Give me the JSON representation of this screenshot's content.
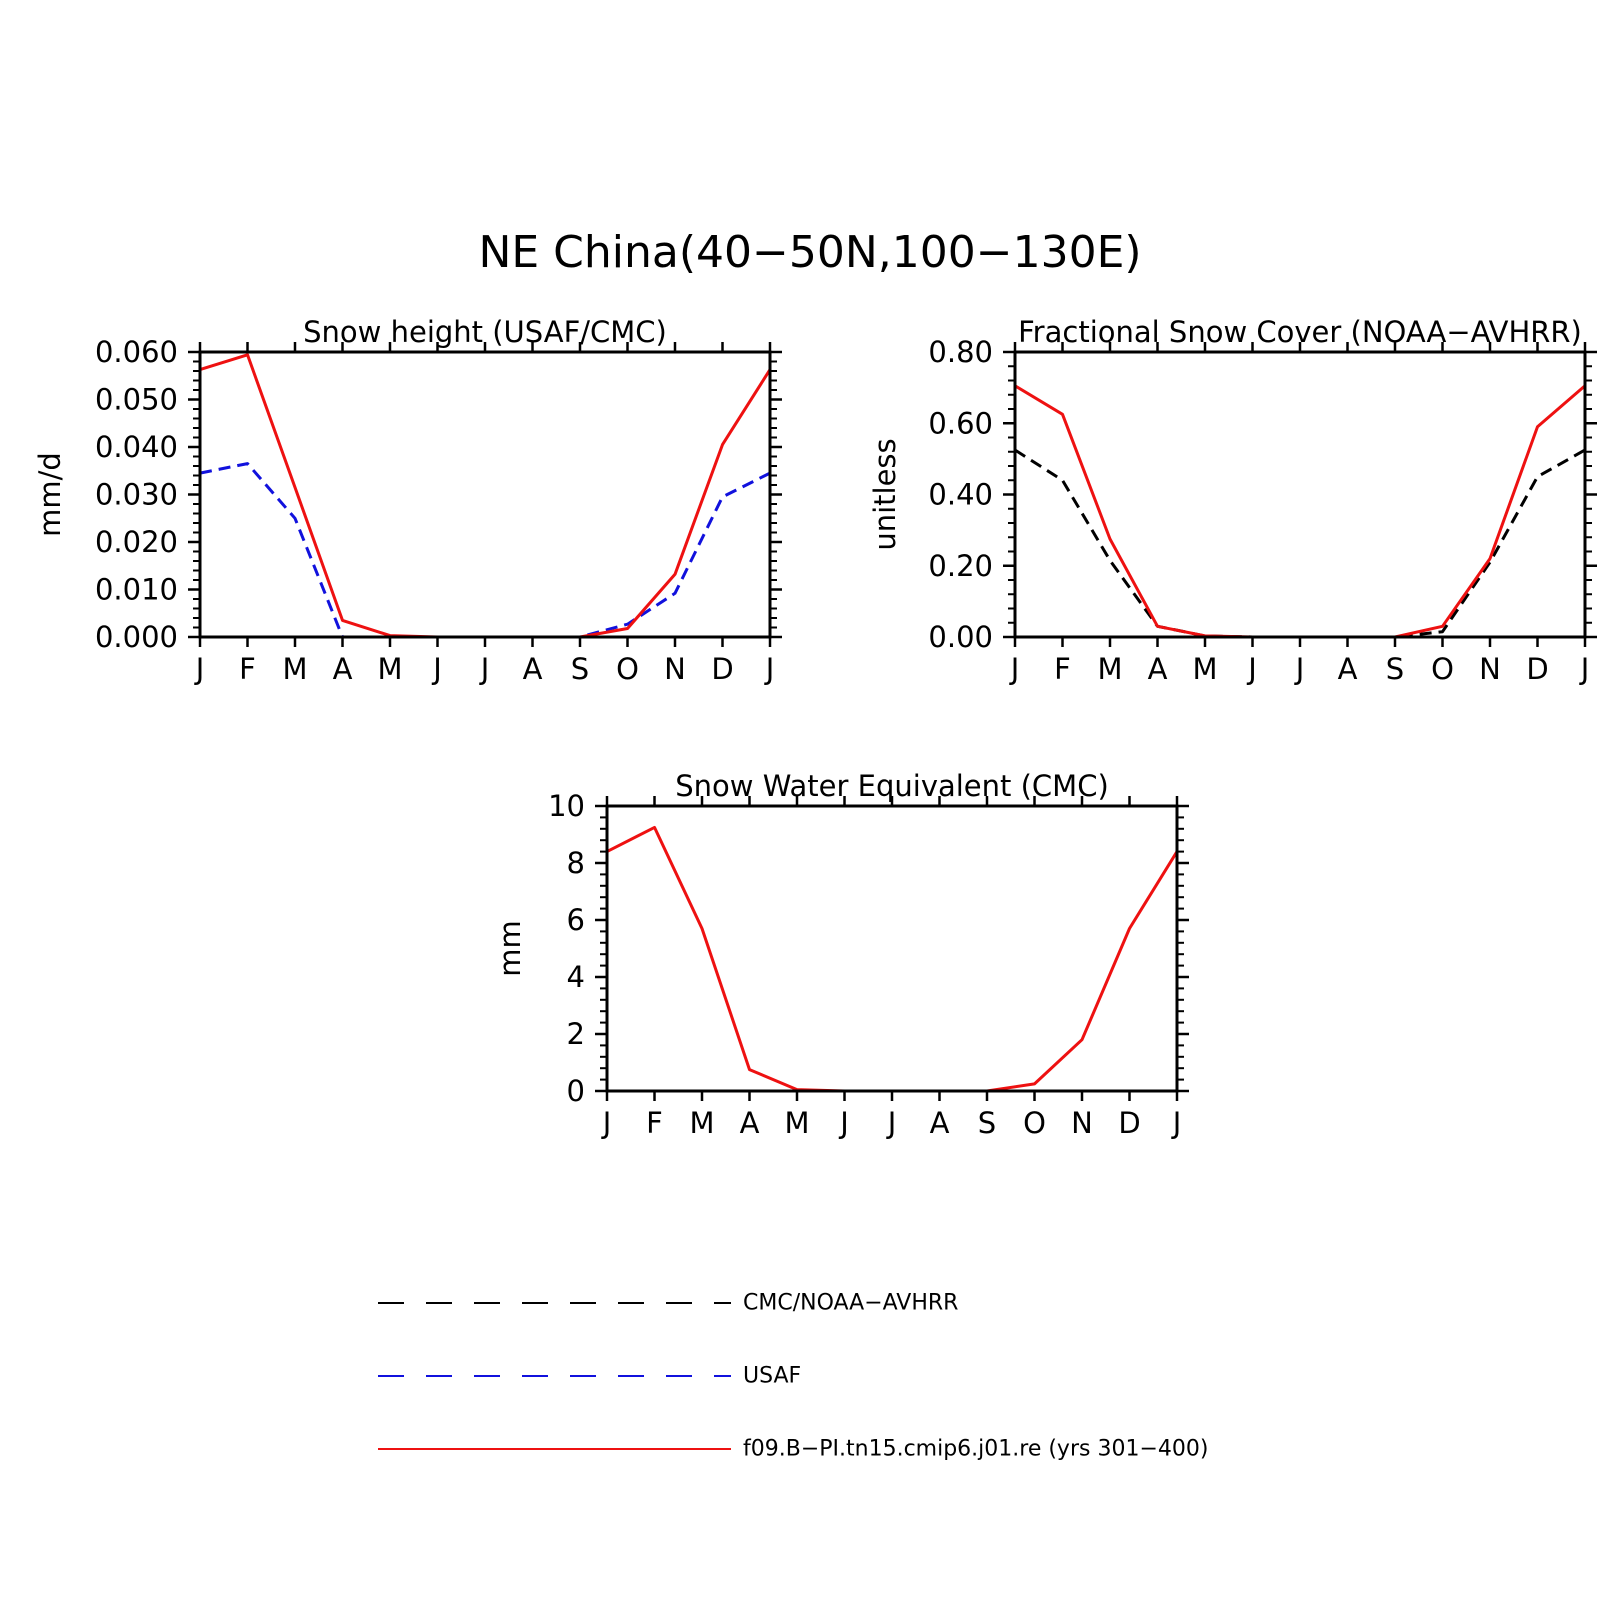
{
  "main_title": "NE China(40−50N,100−130E)",
  "colors": {
    "model": "#ee1111",
    "obs_black": "#000000",
    "obs_blue": "#1111dd"
  },
  "legend": [
    {
      "label": "CMC/NOAA−AVHRR",
      "color": "#000000",
      "dash": "26,22"
    },
    {
      "label": "USAF",
      "color": "#1111dd",
      "dash": "26,22"
    },
    {
      "label": "f09.B−PI.tn15.cmip6.j01.re (yrs 301−400)",
      "color": "#ee1111",
      "dash": ""
    }
  ],
  "chart_data": [
    {
      "type": "line",
      "title": "Snow height (USAF/CMC)",
      "ylabel": "mm/d",
      "xlabel": "",
      "categories": [
        "J",
        "F",
        "M",
        "A",
        "M",
        "J",
        "J",
        "A",
        "S",
        "O",
        "N",
        "D",
        "J"
      ],
      "ylim": [
        0,
        0.06
      ],
      "yticks": [
        "0.000",
        "0.010",
        "0.020",
        "0.030",
        "0.040",
        "0.050",
        "0.060"
      ],
      "series": [
        {
          "name": "CMC/NOAA−AVHRR",
          "color": "#000000",
          "dash": "12,7",
          "values": [
            0,
            0,
            0,
            0,
            0,
            0,
            0,
            0,
            0,
            0,
            0,
            0,
            0
          ]
        },
        {
          "name": "USAF",
          "color": "#1111dd",
          "dash": "12,7",
          "values": [
            0.0345,
            0.0365,
            0.025,
            0.0,
            0.0,
            0.0,
            0.0,
            0.0,
            0.0,
            0.0027,
            0.0092,
            0.0295,
            0.0345
          ]
        },
        {
          "name": "f09.B−PI.tn15.cmip6.j01.re (yrs 301−400)",
          "color": "#ee1111",
          "dash": "",
          "values": [
            0.0563,
            0.0594,
            0.0315,
            0.0035,
            0.0003,
            0.0,
            0.0,
            0.0,
            0.0,
            0.0018,
            0.0132,
            0.0405,
            0.0563
          ]
        }
      ]
    },
    {
      "type": "line",
      "title": "Fractional Snow Cover (NOAA−AVHRR)",
      "ylabel": "unitless",
      "xlabel": "",
      "categories": [
        "J",
        "F",
        "M",
        "A",
        "M",
        "J",
        "J",
        "A",
        "S",
        "O",
        "N",
        "D",
        "J"
      ],
      "ylim": [
        0,
        0.8
      ],
      "yticks": [
        "0.00",
        "0.20",
        "0.40",
        "0.60",
        "0.80"
      ],
      "series": [
        {
          "name": "CMC/NOAA−AVHRR",
          "color": "#000000",
          "dash": "12,7",
          "values": [
            0.525,
            0.44,
            0.215,
            0.03,
            0.003,
            0.0,
            0.0,
            0.0,
            0.0,
            0.015,
            0.21,
            0.45,
            0.525
          ]
        },
        {
          "name": "f09.B−PI.tn15.cmip6.j01.re (yrs 301−400)",
          "color": "#ee1111",
          "dash": "",
          "values": [
            0.705,
            0.625,
            0.275,
            0.03,
            0.003,
            0.0,
            0.0,
            0.0,
            0.0,
            0.03,
            0.22,
            0.59,
            0.705
          ]
        }
      ]
    },
    {
      "type": "line",
      "title": "Snow Water Equivalent (CMC)",
      "ylabel": "mm",
      "xlabel": "",
      "categories": [
        "J",
        "F",
        "M",
        "A",
        "M",
        "J",
        "J",
        "A",
        "S",
        "O",
        "N",
        "D",
        "J"
      ],
      "ylim": [
        0,
        10
      ],
      "yticks": [
        "0",
        "2",
        "4",
        "6",
        "8",
        "10"
      ],
      "series": [
        {
          "name": "CMC/NOAA−AVHRR",
          "color": "#000000",
          "dash": "12,7",
          "values": [
            0,
            0,
            0,
            0,
            0,
            0,
            0,
            0,
            0,
            0,
            0,
            0,
            0
          ]
        },
        {
          "name": "f09.B−PI.tn15.cmip6.j01.re (yrs 301−400)",
          "color": "#ee1111",
          "dash": "",
          "values": [
            8.4,
            9.25,
            5.7,
            0.75,
            0.05,
            0.0,
            0.0,
            0.0,
            0.0,
            0.25,
            1.8,
            5.7,
            8.4
          ]
        }
      ]
    }
  ]
}
